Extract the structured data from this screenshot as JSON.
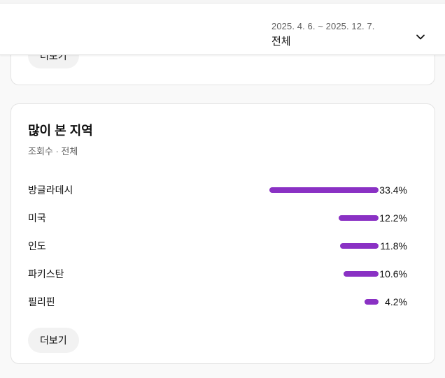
{
  "colors": {
    "accent_bar": "#8a31c4",
    "page_bg": "#f9f9f9",
    "card_bg": "#ffffff",
    "muted_text": "#606060"
  },
  "header": {
    "date_range": "2025. 4. 6. ~ 2025. 12. 7.",
    "filter_label": "전체"
  },
  "top_card": {
    "more_label": "더보기"
  },
  "region_card": {
    "title": "많이 본 지역",
    "subtitle": "조회수 · 전체",
    "rows": [
      {
        "label": "방글라데시",
        "percent": "33.4%",
        "value": 33.4
      },
      {
        "label": "미국",
        "percent": "12.2%",
        "value": 12.2
      },
      {
        "label": "인도",
        "percent": "11.8%",
        "value": 11.8
      },
      {
        "label": "파키스탄",
        "percent": "10.6%",
        "value": 10.6
      },
      {
        "label": "필리핀",
        "percent": "4.2%",
        "value": 4.2
      }
    ],
    "more_label": "더보기"
  },
  "chart_data": {
    "type": "bar",
    "orientation": "horizontal",
    "title": "많이 본 지역",
    "subtitle": "조회수 · 전체",
    "categories": [
      "방글라데시",
      "미국",
      "인도",
      "파키스탄",
      "필리핀"
    ],
    "values": [
      33.4,
      12.2,
      11.8,
      10.6,
      4.2
    ],
    "unit": "%",
    "bar_color": "#8a31c4",
    "xlim": [
      0,
      33.4
    ],
    "grid": false,
    "legend": false
  }
}
